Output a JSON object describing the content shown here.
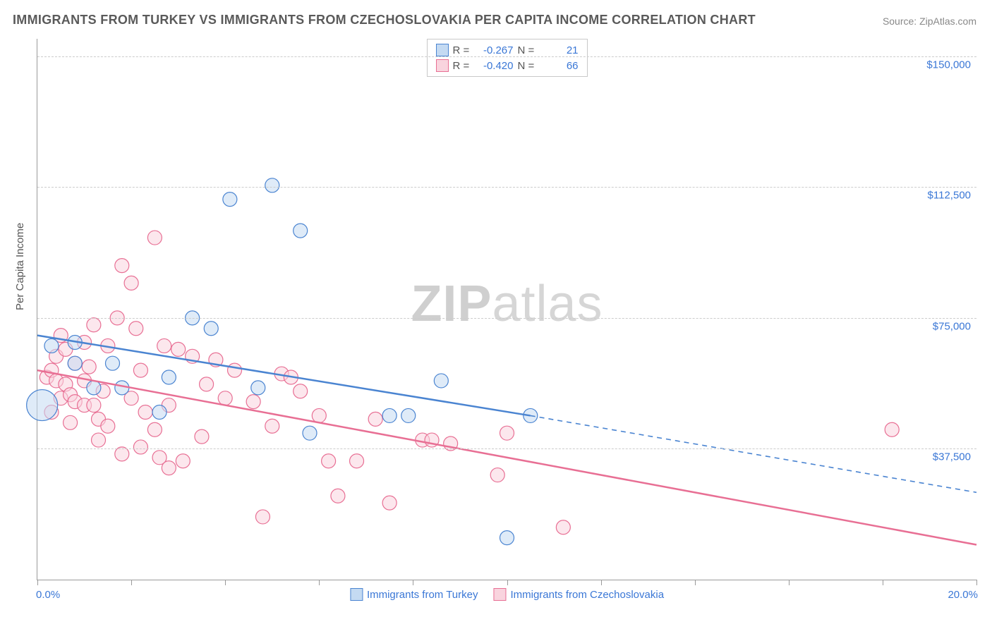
{
  "title": "IMMIGRANTS FROM TURKEY VS IMMIGRANTS FROM CZECHOSLOVAKIA PER CAPITA INCOME CORRELATION CHART",
  "source": "Source: ZipAtlas.com",
  "y_axis_label": "Per Capita Income",
  "watermark_zip": "ZIP",
  "watermark_atlas": "atlas",
  "chart": {
    "type": "scatter",
    "xlim": [
      0,
      20
    ],
    "ylim": [
      0,
      155000
    ],
    "x_tick_positions": [
      0,
      2,
      4,
      6,
      8,
      10,
      12,
      14,
      16,
      18,
      20
    ],
    "y_ticks": [
      {
        "value": 37500,
        "label": "$37,500"
      },
      {
        "value": 75000,
        "label": "$75,000"
      },
      {
        "value": 112500,
        "label": "$112,500"
      },
      {
        "value": 150000,
        "label": "$150,000"
      }
    ],
    "x_min_label": "0.0%",
    "x_max_label": "20.0%",
    "background_color": "#ffffff",
    "grid_color": "#cccccc",
    "marker_radius": 10,
    "marker_opacity": 0.55,
    "series": [
      {
        "name": "Immigrants from Turkey",
        "fill_color": "#c4daf2",
        "stroke_color": "#4a84d1",
        "R": "-0.267",
        "N": "21",
        "regression_solid": {
          "x1": 0.0,
          "y1": 70000,
          "x2": 10.5,
          "y2": 47000
        },
        "regression_dashed": {
          "x1": 10.5,
          "y1": 47000,
          "x2": 20.0,
          "y2": 25000
        },
        "line_width": 2.5,
        "points": [
          {
            "x": 0.1,
            "y": 50000,
            "r": 22
          },
          {
            "x": 0.3,
            "y": 67000
          },
          {
            "x": 0.8,
            "y": 68000
          },
          {
            "x": 0.8,
            "y": 62000
          },
          {
            "x": 1.2,
            "y": 55000
          },
          {
            "x": 1.6,
            "y": 62000
          },
          {
            "x": 1.8,
            "y": 55000
          },
          {
            "x": 2.6,
            "y": 48000
          },
          {
            "x": 2.8,
            "y": 58000
          },
          {
            "x": 3.3,
            "y": 75000
          },
          {
            "x": 3.7,
            "y": 72000
          },
          {
            "x": 4.1,
            "y": 109000
          },
          {
            "x": 4.7,
            "y": 55000
          },
          {
            "x": 5.0,
            "y": 113000
          },
          {
            "x": 5.6,
            "y": 100000
          },
          {
            "x": 5.8,
            "y": 42000
          },
          {
            "x": 7.5,
            "y": 47000
          },
          {
            "x": 7.9,
            "y": 47000
          },
          {
            "x": 8.6,
            "y": 57000
          },
          {
            "x": 10.0,
            "y": 12000
          },
          {
            "x": 10.5,
            "y": 47000
          }
        ]
      },
      {
        "name": "Immigrants from Czechoslovakia",
        "fill_color": "#f9d4de",
        "stroke_color": "#e86f94",
        "R": "-0.420",
        "N": "66",
        "regression_solid": {
          "x1": 0.0,
          "y1": 60000,
          "x2": 20.0,
          "y2": 10000
        },
        "regression_dashed": null,
        "line_width": 2.5,
        "points": [
          {
            "x": 0.2,
            "y": 58000
          },
          {
            "x": 0.3,
            "y": 48000
          },
          {
            "x": 0.3,
            "y": 60000
          },
          {
            "x": 0.4,
            "y": 64000
          },
          {
            "x": 0.4,
            "y": 57000
          },
          {
            "x": 0.5,
            "y": 70000
          },
          {
            "x": 0.5,
            "y": 52000
          },
          {
            "x": 0.6,
            "y": 66000
          },
          {
            "x": 0.6,
            "y": 56000
          },
          {
            "x": 0.7,
            "y": 53000
          },
          {
            "x": 0.7,
            "y": 45000
          },
          {
            "x": 0.8,
            "y": 51000
          },
          {
            "x": 0.8,
            "y": 62000
          },
          {
            "x": 1.0,
            "y": 57000
          },
          {
            "x": 1.0,
            "y": 50000
          },
          {
            "x": 1.0,
            "y": 68000
          },
          {
            "x": 1.1,
            "y": 61000
          },
          {
            "x": 1.2,
            "y": 73000
          },
          {
            "x": 1.2,
            "y": 50000
          },
          {
            "x": 1.3,
            "y": 46000
          },
          {
            "x": 1.3,
            "y": 40000
          },
          {
            "x": 1.4,
            "y": 54000
          },
          {
            "x": 1.5,
            "y": 67000
          },
          {
            "x": 1.5,
            "y": 44000
          },
          {
            "x": 1.7,
            "y": 75000
          },
          {
            "x": 1.8,
            "y": 90000
          },
          {
            "x": 1.8,
            "y": 36000
          },
          {
            "x": 2.0,
            "y": 85000
          },
          {
            "x": 2.0,
            "y": 52000
          },
          {
            "x": 2.1,
            "y": 72000
          },
          {
            "x": 2.2,
            "y": 38000
          },
          {
            "x": 2.2,
            "y": 60000
          },
          {
            "x": 2.3,
            "y": 48000
          },
          {
            "x": 2.5,
            "y": 98000
          },
          {
            "x": 2.5,
            "y": 43000
          },
          {
            "x": 2.6,
            "y": 35000
          },
          {
            "x": 2.7,
            "y": 67000
          },
          {
            "x": 2.8,
            "y": 32000
          },
          {
            "x": 2.8,
            "y": 50000
          },
          {
            "x": 3.0,
            "y": 66000
          },
          {
            "x": 3.1,
            "y": 34000
          },
          {
            "x": 3.3,
            "y": 64000
          },
          {
            "x": 3.5,
            "y": 41000
          },
          {
            "x": 3.6,
            "y": 56000
          },
          {
            "x": 3.8,
            "y": 63000
          },
          {
            "x": 4.0,
            "y": 52000
          },
          {
            "x": 4.2,
            "y": 60000
          },
          {
            "x": 4.6,
            "y": 51000
          },
          {
            "x": 4.8,
            "y": 18000
          },
          {
            "x": 5.0,
            "y": 44000
          },
          {
            "x": 5.2,
            "y": 59000
          },
          {
            "x": 5.4,
            "y": 58000
          },
          {
            "x": 5.6,
            "y": 54000
          },
          {
            "x": 6.0,
            "y": 47000
          },
          {
            "x": 6.2,
            "y": 34000
          },
          {
            "x": 6.4,
            "y": 24000
          },
          {
            "x": 6.8,
            "y": 34000
          },
          {
            "x": 7.2,
            "y": 46000
          },
          {
            "x": 7.5,
            "y": 22000
          },
          {
            "x": 8.2,
            "y": 40000
          },
          {
            "x": 8.4,
            "y": 40000
          },
          {
            "x": 8.8,
            "y": 39000
          },
          {
            "x": 9.8,
            "y": 30000
          },
          {
            "x": 10.0,
            "y": 42000
          },
          {
            "x": 11.2,
            "y": 15000
          },
          {
            "x": 18.2,
            "y": 43000
          }
        ]
      }
    ]
  },
  "stats_header": {
    "r_label": "R =",
    "n_label": "N ="
  }
}
